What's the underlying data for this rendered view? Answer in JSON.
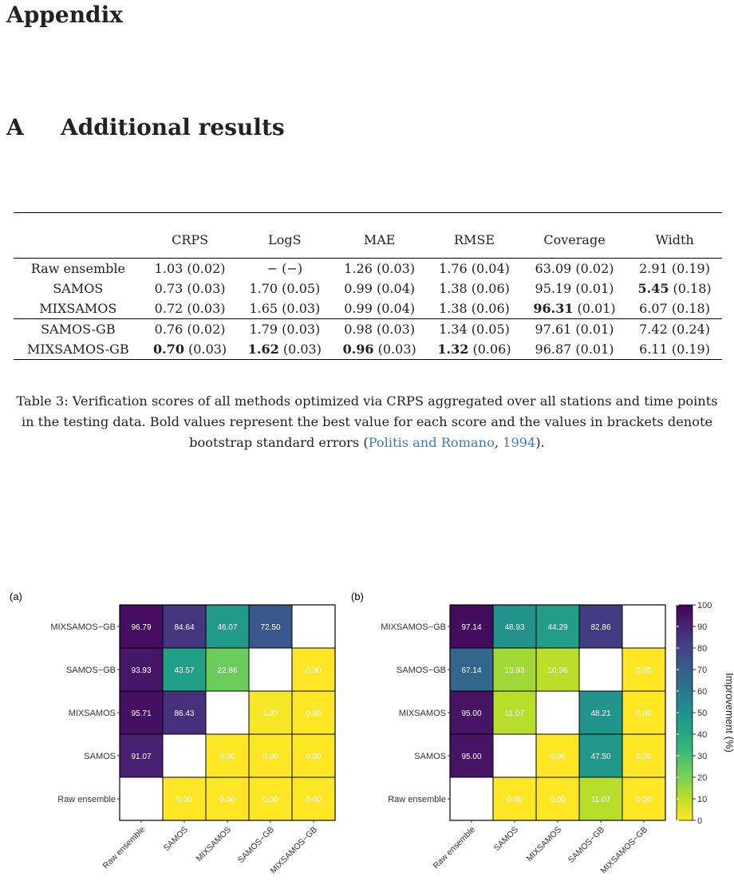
{
  "headings": {
    "appendix": "Appendix",
    "section_num": "A",
    "section_title": "Additional results"
  },
  "table": {
    "columns": [
      "",
      "CRPS",
      "LogS",
      "MAE",
      "RMSE",
      "Coverage",
      "Width"
    ],
    "rows": [
      {
        "method": "Raw ensemble",
        "cells": [
          [
            "",
            "1.03 (0.02)"
          ],
          [
            "",
            "− (−)"
          ],
          [
            "",
            "1.26 (0.03)"
          ],
          [
            "",
            "1.76 (0.04)"
          ],
          [
            "",
            "63.09 (0.02)"
          ],
          [
            "",
            "2.91 (0.19)"
          ]
        ]
      },
      {
        "method": "SAMOS",
        "cells": [
          [
            "",
            "0.73 (0.03)"
          ],
          [
            "",
            "1.70 (0.05)"
          ],
          [
            "",
            "0.99 (0.04)"
          ],
          [
            "",
            "1.38 (0.06)"
          ],
          [
            "",
            "95.19 (0.01)"
          ],
          [
            "5.45",
            " (0.18)"
          ]
        ]
      },
      {
        "method": "MIXSAMOS",
        "cells": [
          [
            "",
            "0.72 (0.03)"
          ],
          [
            "",
            "1.65 (0.03)"
          ],
          [
            "",
            "0.99 (0.04)"
          ],
          [
            "",
            "1.38 (0.06)"
          ],
          [
            "96.31",
            " (0.01)"
          ],
          [
            "",
            "6.07 (0.18)"
          ]
        ]
      },
      {
        "method": "SAMOS-GB",
        "cells": [
          [
            "",
            "0.76 (0.02)"
          ],
          [
            "",
            "1.79 (0.03)"
          ],
          [
            "",
            "0.98 (0.03)"
          ],
          [
            "",
            "1.34 (0.05)"
          ],
          [
            "",
            "97.61 (0.01)"
          ],
          [
            "",
            "7.42 (0.24)"
          ]
        ]
      },
      {
        "method": "MIXSAMOS-GB",
        "cells": [
          [
            "0.70",
            " (0.03)"
          ],
          [
            "1.62",
            " (0.03)"
          ],
          [
            "0.96",
            " (0.03)"
          ],
          [
            "1.32",
            " (0.06)"
          ],
          [
            "",
            "96.87 (0.01)"
          ],
          [
            "",
            "6.11 (0.19)"
          ]
        ]
      }
    ]
  },
  "caption": {
    "text": "Table 3: Verification scores of all methods optimized via CRPS aggregated over all stations and time points in the testing data. Bold values represent the best value for each score and the values in brackets denote bootstrap standard errors (",
    "cite_authors": "Politis and Romano",
    "cite_sep": ", ",
    "cite_year": "1994",
    "tail": ")."
  },
  "chart_data": [
    {
      "type": "heatmap",
      "panel_label": "(a)",
      "rows": [
        "MIXSAMOS−GB",
        "SAMOS−GB",
        "MIXSAMOS",
        "SAMOS",
        "Raw ensemble"
      ],
      "cols": [
        "Raw ensemble",
        "SAMOS",
        "MIXSAMOS",
        "SAMOS−GB",
        "MIXSAMOS−GB"
      ],
      "values": [
        [
          96.79,
          84.64,
          46.07,
          72.5,
          null
        ],
        [
          93.93,
          43.57,
          22.86,
          null,
          0.0
        ],
        [
          95.71,
          86.43,
          null,
          1.07,
          0.0
        ],
        [
          91.07,
          null,
          0.0,
          0.0,
          0.0
        ],
        [
          null,
          0.0,
          0.0,
          0.0,
          0.0
        ]
      ],
      "zlim": [
        0,
        100
      ]
    },
    {
      "type": "heatmap",
      "panel_label": "(b)",
      "rows": [
        "MIXSAMOS−GB",
        "SAMOS−GB",
        "MIXSAMOS",
        "SAMOS",
        "Raw ensemble"
      ],
      "cols": [
        "Raw ensemble",
        "SAMOS",
        "MIXSAMOS",
        "SAMOS−GB",
        "MIXSAMOS−GB"
      ],
      "values": [
        [
          97.14,
          48.93,
          44.29,
          82.86,
          null
        ],
        [
          67.14,
          13.93,
          10.36,
          null,
          0.0
        ],
        [
          95.0,
          11.07,
          null,
          48.21,
          0.0
        ],
        [
          95.0,
          null,
          0.0,
          47.5,
          0.0
        ],
        [
          null,
          0.0,
          0.0,
          11.07,
          0.0
        ]
      ],
      "zlim": [
        0,
        100
      ],
      "colorbar": {
        "title": "Improvement (%)",
        "ticks": [
          0,
          10,
          20,
          30,
          40,
          50,
          60,
          70,
          80,
          90,
          100
        ],
        "palette": "viridis"
      }
    }
  ]
}
